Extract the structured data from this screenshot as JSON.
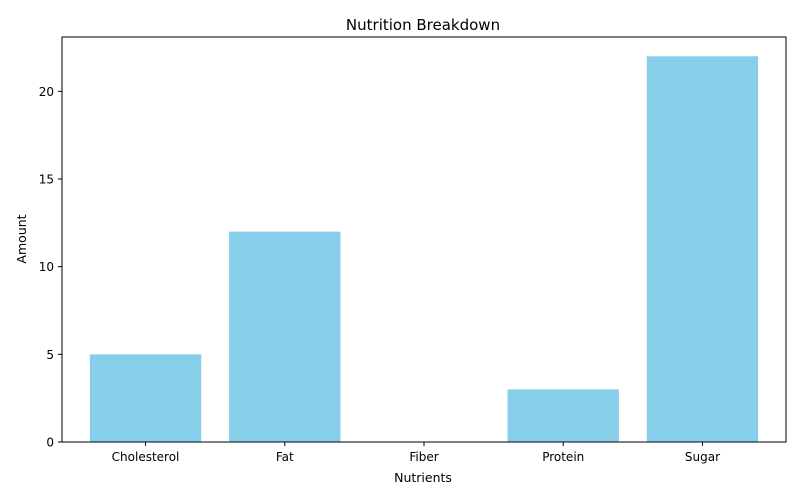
{
  "chart_data": {
    "type": "bar",
    "title": "Nutrition Breakdown",
    "xlabel": "Nutrients",
    "ylabel": "Amount",
    "categories": [
      "Cholesterol",
      "Fat",
      "Fiber",
      "Protein",
      "Sugar"
    ],
    "values": [
      5,
      12,
      0,
      3,
      22
    ],
    "ylim": [
      0,
      23.1
    ],
    "yticks": [
      0,
      5,
      10,
      15,
      20
    ],
    "bar_color": "#87ceeb",
    "grid": false,
    "legend": "none"
  }
}
